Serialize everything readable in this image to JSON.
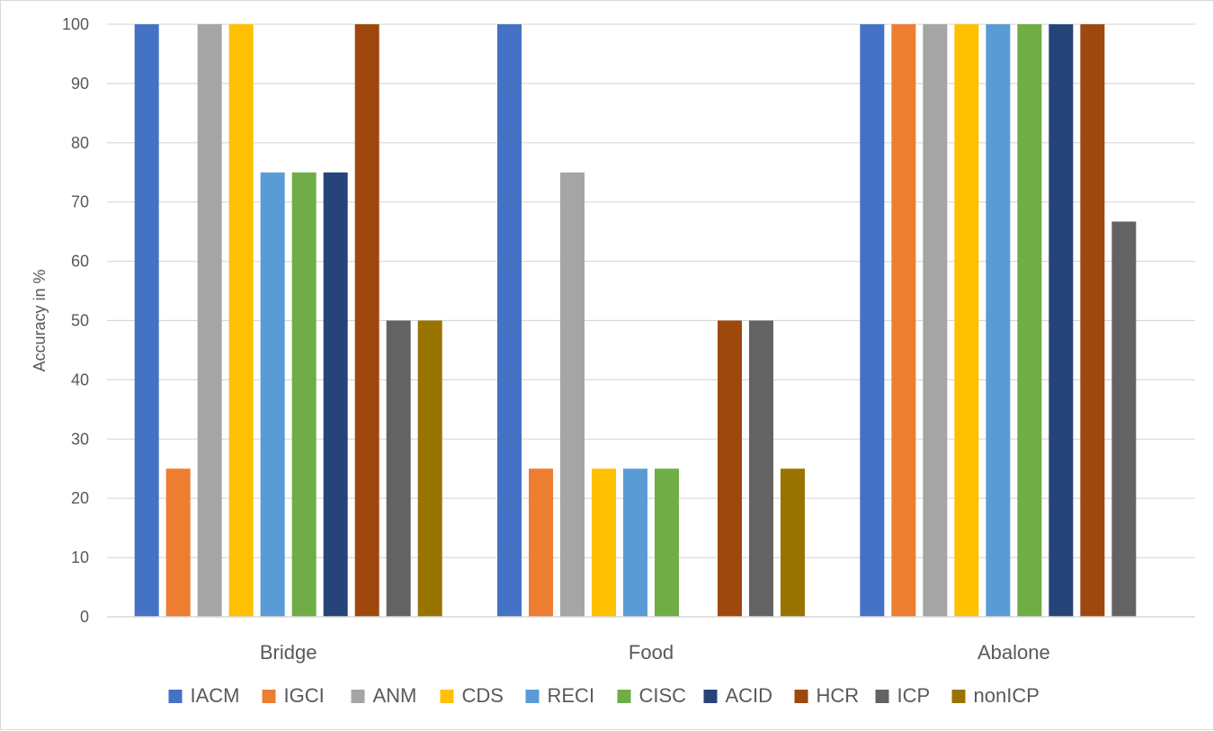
{
  "chart_data": {
    "type": "bar",
    "title": "",
    "xlabel": "",
    "ylabel": "Accuracy in %",
    "ylim": [
      0,
      100
    ],
    "yticks": [
      0,
      10,
      20,
      30,
      40,
      50,
      60,
      70,
      80,
      90,
      100
    ],
    "grid": true,
    "legend_position": "bottom",
    "categories": [
      "Bridge",
      "Food",
      "Abalone"
    ],
    "series": [
      {
        "name": "IACM",
        "color": "#4472C4",
        "values": [
          100,
          100,
          100
        ]
      },
      {
        "name": "IGCI",
        "color": "#ED7D31",
        "values": [
          25,
          25,
          100
        ]
      },
      {
        "name": "ANM",
        "color": "#A5A5A5",
        "values": [
          100,
          75,
          100
        ]
      },
      {
        "name": "CDS",
        "color": "#FFC000",
        "values": [
          100,
          25,
          100
        ]
      },
      {
        "name": "RECI",
        "color": "#5B9BD5",
        "values": [
          75,
          25,
          100
        ]
      },
      {
        "name": "CISC",
        "color": "#70AD47",
        "values": [
          75,
          25,
          100
        ]
      },
      {
        "name": "ACID",
        "color": "#264478",
        "values": [
          75,
          0,
          100
        ]
      },
      {
        "name": "HCR",
        "color": "#9E480E",
        "values": [
          100,
          50,
          100
        ]
      },
      {
        "name": "ICP",
        "color": "#636363",
        "values": [
          50,
          50,
          66.7
        ]
      },
      {
        "name": "nonICP",
        "color": "#997300",
        "values": [
          50,
          25,
          0
        ]
      }
    ]
  }
}
